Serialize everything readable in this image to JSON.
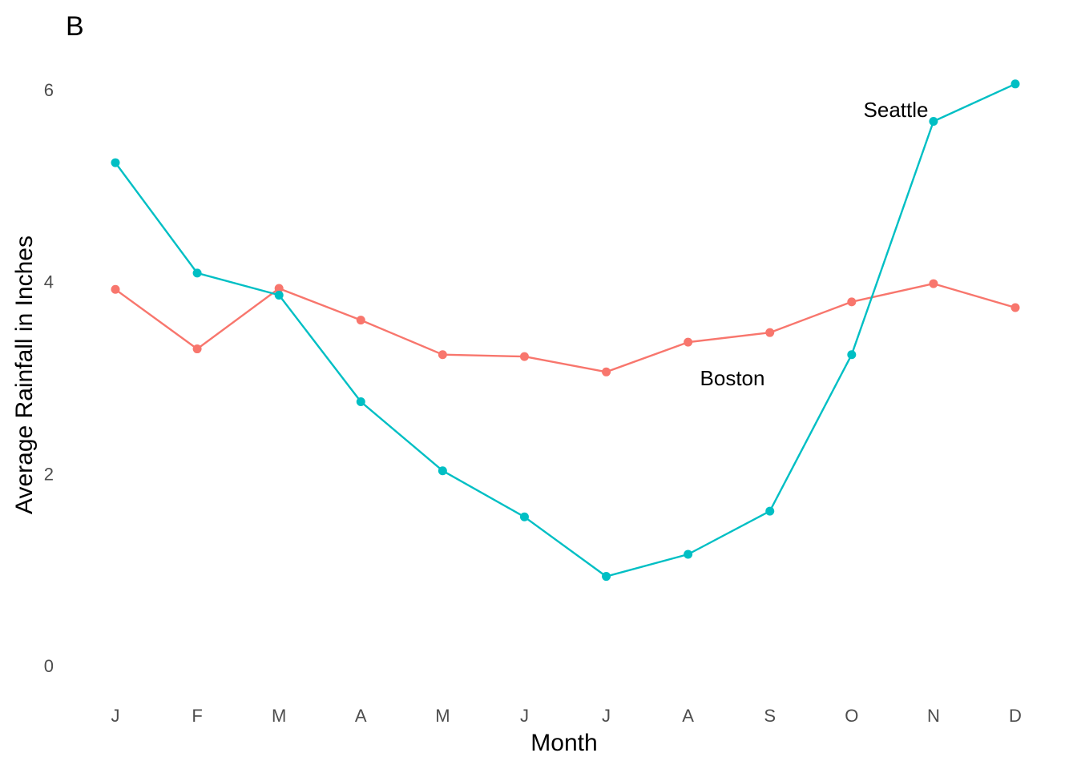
{
  "chart_data": {
    "type": "line",
    "panel_tag": "B",
    "title": "",
    "xlabel": "Month",
    "ylabel": "Average Rainfall in Inches",
    "categories": [
      "J",
      "F",
      "M",
      "A",
      "M",
      "J",
      "J",
      "A",
      "S",
      "O",
      "N",
      "D"
    ],
    "yticks": [
      0,
      2,
      4,
      6
    ],
    "ylim": [
      -0.3,
      6.5
    ],
    "grid": false,
    "legend": "none",
    "series": [
      {
        "name": "Boston",
        "color": "#F8766D",
        "values": [
          3.92,
          3.3,
          3.93,
          3.6,
          3.24,
          3.22,
          3.06,
          3.37,
          3.47,
          3.79,
          3.98,
          3.73
        ]
      },
      {
        "name": "Seattle",
        "color": "#00BFC4",
        "values": [
          5.24,
          4.09,
          3.86,
          2.75,
          2.03,
          1.55,
          0.93,
          1.16,
          1.61,
          3.24,
          5.67,
          6.06
        ]
      }
    ]
  }
}
